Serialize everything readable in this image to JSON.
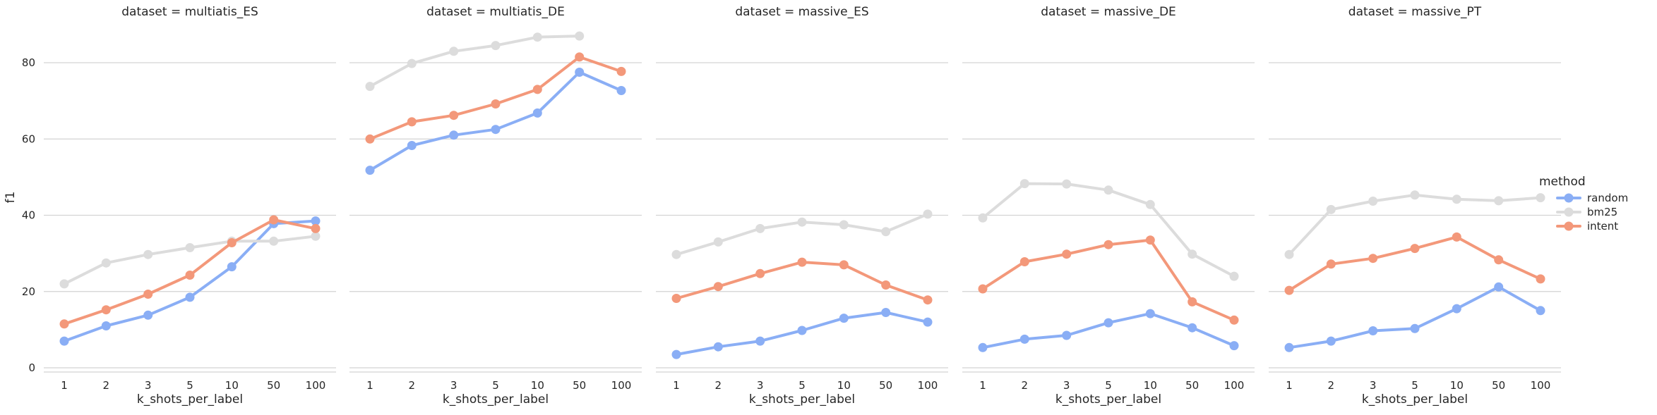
{
  "chart_data": {
    "type": "line",
    "ylabel": "f1",
    "xlabel": "k_shots_per_label",
    "x_categories": [
      "1",
      "2",
      "3",
      "5",
      "10",
      "50",
      "100"
    ],
    "ylim": [
      0,
      90
    ],
    "yticks": [
      0,
      20,
      40,
      60,
      80
    ],
    "grid": "horizontal",
    "legend": {
      "title": "method",
      "placement": "right",
      "entries": [
        {
          "name": "random",
          "color": "#8aaef5"
        },
        {
          "name": "bm25",
          "color": "#dcdcdc"
        },
        {
          "name": "intent",
          "color": "#f3987a"
        }
      ]
    },
    "panels": [
      {
        "title": "dataset = multiatis_ES",
        "series": [
          {
            "name": "random",
            "values": [
              7.0,
              11.0,
              13.8,
              18.5,
              26.5,
              37.8,
              38.5
            ]
          },
          {
            "name": "bm25",
            "values": [
              22.0,
              27.5,
              29.7,
              31.5,
              33.2,
              33.2,
              34.5
            ]
          },
          {
            "name": "intent",
            "values": [
              11.5,
              15.2,
              19.3,
              24.3,
              32.8,
              38.8,
              36.5
            ]
          }
        ]
      },
      {
        "title": "dataset = multiatis_DE",
        "series": [
          {
            "name": "random",
            "values": [
              51.8,
              58.3,
              61.0,
              62.5,
              66.8,
              77.5,
              72.7
            ]
          },
          {
            "name": "bm25",
            "values": [
              73.8,
              79.8,
              83.0,
              84.5,
              86.7,
              87.0,
              null
            ]
          },
          {
            "name": "intent",
            "values": [
              60.0,
              64.5,
              66.2,
              69.2,
              73.0,
              81.5,
              77.7
            ]
          }
        ]
      },
      {
        "title": "dataset = massive_ES",
        "series": [
          {
            "name": "random",
            "values": [
              3.5,
              5.5,
              7.0,
              9.8,
              13.0,
              14.5,
              12.0
            ]
          },
          {
            "name": "bm25",
            "values": [
              29.7,
              33.0,
              36.5,
              38.2,
              37.5,
              35.7,
              40.3
            ]
          },
          {
            "name": "intent",
            "values": [
              18.2,
              21.3,
              24.7,
              27.7,
              27.0,
              21.7,
              17.8
            ]
          }
        ]
      },
      {
        "title": "dataset = massive_DE",
        "series": [
          {
            "name": "random",
            "values": [
              5.3,
              7.5,
              8.5,
              11.8,
              14.2,
              10.5,
              5.8
            ]
          },
          {
            "name": "bm25",
            "values": [
              39.3,
              48.3,
              48.2,
              46.6,
              42.8,
              29.8,
              24.0
            ]
          },
          {
            "name": "intent",
            "values": [
              20.7,
              27.8,
              29.8,
              32.3,
              33.5,
              17.3,
              12.5
            ]
          }
        ]
      },
      {
        "title": "dataset = massive_PT",
        "series": [
          {
            "name": "random",
            "values": [
              5.3,
              7.0,
              9.7,
              10.3,
              15.5,
              21.2,
              15.0
            ]
          },
          {
            "name": "bm25",
            "values": [
              29.7,
              41.5,
              43.7,
              45.3,
              44.2,
              43.8,
              44.6
            ]
          },
          {
            "name": "intent",
            "values": [
              20.3,
              27.2,
              28.7,
              31.3,
              34.3,
              28.3,
              23.3
            ]
          }
        ]
      }
    ]
  }
}
